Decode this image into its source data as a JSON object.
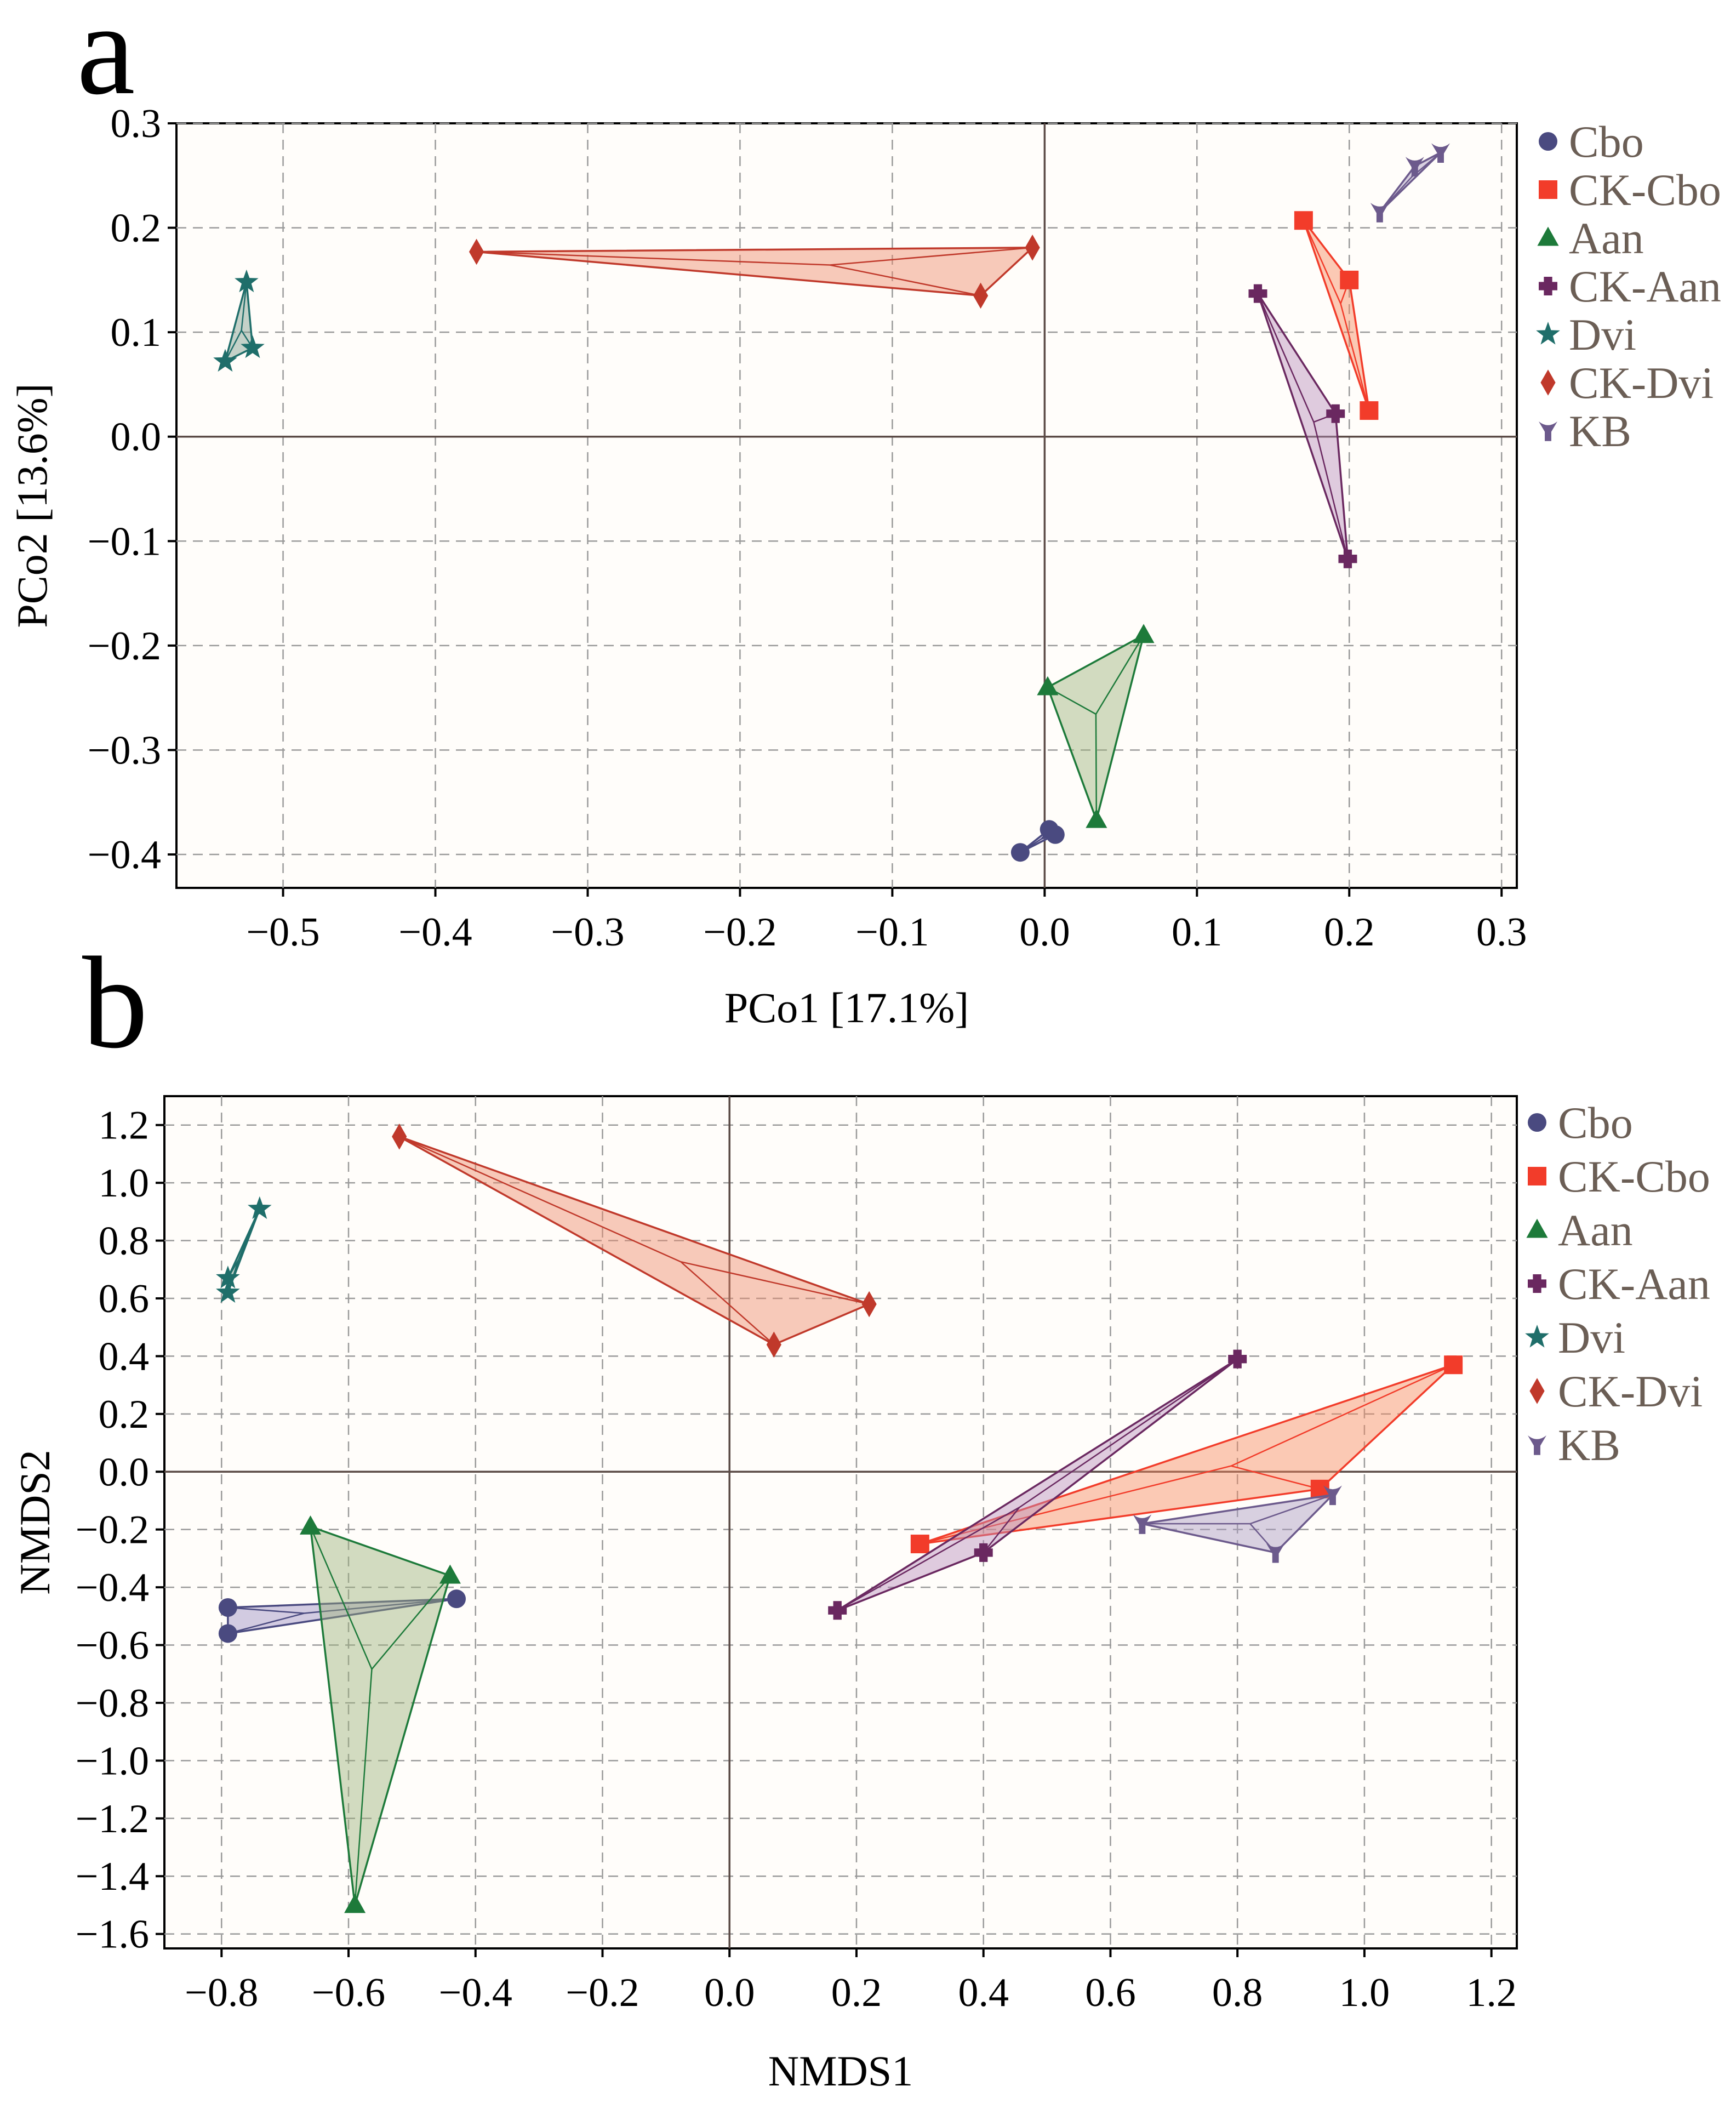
{
  "figure": {
    "panels": [
      "a",
      "b"
    ]
  },
  "colors": {
    "Cbo": "#4a4a80",
    "CK-Cbo": "#f23c2a",
    "Aan": "#1d7a3a",
    "CK-Aan": "#6a2860",
    "Dvi": "#1f6e6a",
    "CK-Dvi": "#c0392b",
    "KB": "#6c5a8c"
  },
  "hull_fill": {
    "Cbo": "#9c8fc4",
    "CK-Cbo": "#f78a60",
    "Aan": "#9cb27a",
    "CK-Aan": "#b78fbc",
    "Dvi": "#7c9c8c",
    "CK-Dvi": "#ee8a6a",
    "KB": "#a898c0"
  },
  "chart_data": [
    {
      "panel": "a",
      "type": "scatter",
      "title": "",
      "xlabel": "PCo1 [17.1%]",
      "ylabel": "PCo2 [13.6%]",
      "xlim": [
        -0.57,
        0.31
      ],
      "ylim": [
        -0.432,
        0.3
      ],
      "xticks": [
        -0.5,
        -0.4,
        -0.3,
        -0.2,
        -0.1,
        0.0,
        0.1,
        0.2,
        0.3
      ],
      "yticks": [
        0.3,
        0.2,
        0.1,
        0.0,
        -0.1,
        -0.2,
        -0.3,
        -0.4
      ],
      "xtick_labels": [
        "−0.5",
        "−0.4",
        "−0.3",
        "−0.2",
        "−0.1",
        "0.0",
        "0.1",
        "0.2",
        "0.3"
      ],
      "ytick_labels": [
        "0.3",
        "0.2",
        "0.1",
        "0.0",
        "−0.1",
        "−0.2",
        "−0.3",
        "−0.4"
      ],
      "grid": true,
      "legend": [
        "Cbo",
        "CK-Cbo",
        "Aan",
        "CK-Aan",
        "Dvi",
        "CK-Dvi",
        "KB"
      ],
      "legend_placement": "right",
      "series": [
        {
          "name": "Cbo",
          "marker": "circle",
          "points": [
            [
              -0.016,
              -0.398
            ],
            [
              0.003,
              -0.376
            ],
            [
              0.007,
              -0.381
            ]
          ]
        },
        {
          "name": "CK-Cbo",
          "marker": "square",
          "points": [
            [
              0.17,
              0.207
            ],
            [
              0.2,
              0.15
            ],
            [
              0.213,
              0.025
            ]
          ]
        },
        {
          "name": "Aan",
          "marker": "triangle",
          "points": [
            [
              0.065,
              -0.19
            ],
            [
              0.002,
              -0.24
            ],
            [
              0.034,
              -0.367
            ]
          ]
        },
        {
          "name": "CK-Aan",
          "marker": "cross",
          "points": [
            [
              0.14,
              0.137
            ],
            [
              0.191,
              0.022
            ],
            [
              0.199,
              -0.117
            ]
          ]
        },
        {
          "name": "Dvi",
          "marker": "star",
          "points": [
            [
              -0.524,
              0.148
            ],
            [
              -0.538,
              0.072
            ],
            [
              -0.52,
              0.085
            ]
          ]
        },
        {
          "name": "CK-Dvi",
          "marker": "diamond",
          "points": [
            [
              -0.373,
              0.177
            ],
            [
              -0.008,
              0.181
            ],
            [
              -0.042,
              0.135
            ]
          ]
        },
        {
          "name": "KB",
          "marker": "y",
          "points": [
            [
              0.22,
              0.215
            ],
            [
              0.243,
              0.259
            ],
            [
              0.26,
              0.272
            ]
          ]
        }
      ]
    },
    {
      "panel": "b",
      "type": "scatter",
      "title": "",
      "xlabel": "NMDS1",
      "ylabel": "NMDS2",
      "xlim": [
        -0.89,
        1.24
      ],
      "ylim": [
        -1.65,
        1.3
      ],
      "xticks": [
        -0.8,
        -0.6,
        -0.4,
        -0.2,
        0.0,
        0.2,
        0.4,
        0.6,
        0.8,
        1.0,
        1.2
      ],
      "yticks": [
        1.2,
        1.0,
        0.8,
        0.6,
        0.4,
        0.2,
        0.0,
        -0.2,
        -0.4,
        -0.6,
        -0.8,
        -1.0,
        -1.2,
        -1.4,
        -1.6
      ],
      "xtick_labels": [
        "−0.8",
        "−0.6",
        "−0.4",
        "−0.2",
        "0.0",
        "0.2",
        "0.4",
        "0.6",
        "0.8",
        "1.0",
        "1.2"
      ],
      "ytick_labels": [
        "1.2",
        "1.0",
        "0.8",
        "0.6",
        "0.4",
        "0.2",
        "0.0",
        "−0.2",
        "−0.4",
        "−0.6",
        "−0.8",
        "−1.0",
        "−1.2",
        "−1.4",
        "−1.6"
      ],
      "grid": true,
      "legend": [
        "Cbo",
        "CK-Cbo",
        "Aan",
        "CK-Aan",
        "Dvi",
        "CK-Dvi",
        "KB"
      ],
      "legend_placement": "right",
      "series": [
        {
          "name": "Cbo",
          "marker": "circle",
          "points": [
            [
              -0.79,
              -0.47
            ],
            [
              -0.79,
              -0.56
            ],
            [
              -0.43,
              -0.44
            ]
          ]
        },
        {
          "name": "CK-Cbo",
          "marker": "square",
          "points": [
            [
              0.3,
              -0.25
            ],
            [
              1.14,
              0.37
            ],
            [
              0.93,
              -0.06
            ]
          ]
        },
        {
          "name": "Aan",
          "marker": "triangle",
          "points": [
            [
              -0.66,
              -0.19
            ],
            [
              -0.44,
              -0.36
            ],
            [
              -0.59,
              -1.5
            ]
          ]
        },
        {
          "name": "CK-Aan",
          "marker": "cross",
          "points": [
            [
              0.8,
              0.39
            ],
            [
              0.17,
              -0.48
            ],
            [
              0.4,
              -0.28
            ]
          ]
        },
        {
          "name": "Dvi",
          "marker": "star",
          "points": [
            [
              -0.79,
              0.67
            ],
            [
              -0.79,
              0.62
            ],
            [
              -0.74,
              0.91
            ]
          ]
        },
        {
          "name": "CK-Dvi",
          "marker": "diamond",
          "points": [
            [
              -0.52,
              1.16
            ],
            [
              0.22,
              0.58
            ],
            [
              0.07,
              0.44
            ]
          ]
        },
        {
          "name": "KB",
          "marker": "y",
          "points": [
            [
              0.65,
              -0.18
            ],
            [
              0.95,
              -0.08
            ],
            [
              0.86,
              -0.28
            ]
          ]
        }
      ]
    }
  ]
}
